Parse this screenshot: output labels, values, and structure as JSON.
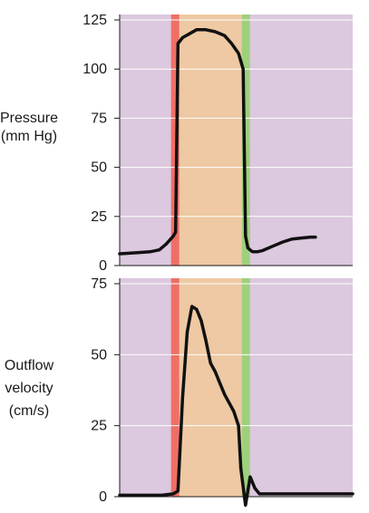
{
  "colors": {
    "background": "#dcc8df",
    "phase_band": "#eec9a3",
    "start_marker": "#ef6f66",
    "end_marker": "#9ed07c",
    "curve": "#111111",
    "gridline": "#ffffff"
  },
  "chart_data": [
    {
      "type": "line",
      "title": "",
      "ylabel_lines": [
        "Pressure",
        "(mm Hg)"
      ],
      "xlabel": "",
      "ylim": [
        0,
        125
      ],
      "yticks": [
        "0",
        "25",
        "50",
        "75",
        "100",
        "125"
      ],
      "grid": true,
      "legend": "none",
      "x_range": [
        0,
        100
      ],
      "phase_band": [
        24,
        54
      ],
      "start_marker": 24,
      "end_marker": 54,
      "series": [
        {
          "x": [
            0,
            7,
            13,
            17,
            20,
            23,
            24,
            25,
            27,
            30,
            33,
            37,
            41,
            45,
            48,
            51,
            53,
            54,
            55,
            56,
            57,
            59,
            61,
            63,
            66,
            70,
            74,
            78,
            82,
            84
          ],
          "y": [
            6,
            6.5,
            7,
            8,
            11,
            15,
            17,
            113,
            116,
            118,
            120,
            120,
            119,
            117,
            113,
            108,
            100,
            15,
            9,
            8,
            7,
            7,
            7.5,
            8.5,
            10,
            12,
            13.5,
            14,
            14.5,
            14.5
          ]
        }
      ]
    },
    {
      "type": "line",
      "title": "",
      "ylabel_lines": [
        "Outflow",
        "velocity",
        "(cm/s)"
      ],
      "xlabel": "",
      "ylim": [
        0,
        75
      ],
      "yticks": [
        "0",
        "25",
        "50",
        "75"
      ],
      "grid": true,
      "legend": "none",
      "x_range": [
        0,
        100
      ],
      "phase_band": [
        24,
        54
      ],
      "start_marker": 24,
      "end_marker": 54,
      "series": [
        {
          "x": [
            0,
            10,
            18,
            23,
            25,
            27,
            29,
            31,
            33,
            35,
            37,
            39,
            41,
            43,
            45,
            47,
            49,
            51,
            52,
            54,
            56,
            58,
            60,
            62,
            70,
            80,
            90,
            100
          ],
          "y": [
            0.5,
            0.5,
            0.5,
            1,
            2,
            35,
            58,
            67,
            66,
            62,
            55,
            47,
            44,
            40,
            36,
            33,
            30,
            25,
            10,
            -3,
            7,
            3,
            1,
            1,
            1,
            1,
            1,
            1
          ]
        }
      ]
    }
  ]
}
